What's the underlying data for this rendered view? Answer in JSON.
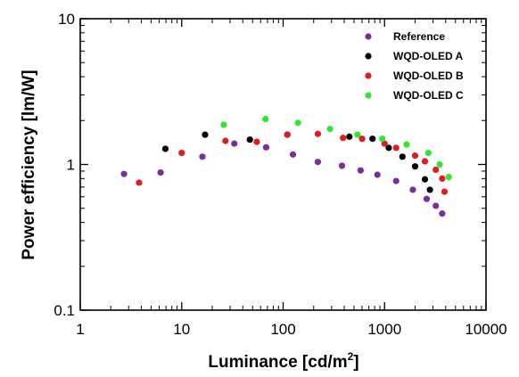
{
  "chart_data": {
    "type": "scatter",
    "title": "",
    "xlabel": "Luminance [cd/m",
    "xlabel_sup": "2",
    "xlabel_end": "]",
    "ylabel": "Power efficiency [lm/W]",
    "xscale": "log",
    "yscale": "log",
    "xlim": [
      1,
      10000
    ],
    "ylim": [
      0.1,
      10
    ],
    "x_ticks": [
      1,
      10,
      100,
      1000,
      10000
    ],
    "x_tick_labels": [
      "1",
      "10",
      "100",
      "1000",
      "10000"
    ],
    "y_ticks": [
      0.1,
      1,
      10
    ],
    "y_tick_labels": [
      "0.1",
      "1",
      "10"
    ],
    "grid": false,
    "legend_position": "top-right",
    "series": [
      {
        "name": "Reference",
        "color": "#7b2d9e",
        "points": [
          [
            2.7,
            0.86
          ],
          [
            6.2,
            0.88
          ],
          [
            16,
            1.13
          ],
          [
            33,
            1.39
          ],
          [
            68,
            1.31
          ],
          [
            125,
            1.17
          ],
          [
            220,
            1.04
          ],
          [
            380,
            0.98
          ],
          [
            580,
            0.91
          ],
          [
            850,
            0.85
          ],
          [
            1300,
            0.77
          ],
          [
            1900,
            0.67
          ],
          [
            2600,
            0.58
          ],
          [
            3200,
            0.52
          ],
          [
            3700,
            0.46
          ]
        ]
      },
      {
        "name": "WQD-OLED A",
        "color": "#000000",
        "points": [
          [
            6.9,
            1.28
          ],
          [
            17,
            1.6
          ],
          [
            47,
            1.48
          ],
          [
            110,
            1.6
          ],
          [
            450,
            1.55
          ],
          [
            760,
            1.5
          ],
          [
            1100,
            1.3
          ],
          [
            1500,
            1.13
          ],
          [
            2000,
            0.97
          ],
          [
            2500,
            0.79
          ],
          [
            2800,
            0.67
          ]
        ]
      },
      {
        "name": "WQD-OLED B",
        "color": "#e8191e",
        "points": [
          [
            3.8,
            0.75
          ],
          [
            10,
            1.2
          ],
          [
            27,
            1.45
          ],
          [
            55,
            1.43
          ],
          [
            110,
            1.6
          ],
          [
            220,
            1.62
          ],
          [
            390,
            1.52
          ],
          [
            600,
            1.5
          ],
          [
            1000,
            1.39
          ],
          [
            1300,
            1.3
          ],
          [
            2000,
            1.15
          ],
          [
            2500,
            1.05
          ],
          [
            3200,
            0.92
          ],
          [
            3700,
            0.8
          ],
          [
            3900,
            0.65
          ]
        ]
      },
      {
        "name": "WQD-OLED C",
        "color": "#2ee82e",
        "points": [
          [
            26,
            1.87
          ],
          [
            67,
            2.05
          ],
          [
            140,
            1.93
          ],
          [
            290,
            1.75
          ],
          [
            540,
            1.6
          ],
          [
            950,
            1.5
          ],
          [
            1650,
            1.37
          ],
          [
            2700,
            1.2
          ],
          [
            3500,
            1.0
          ],
          [
            4300,
            0.82
          ]
        ]
      }
    ]
  }
}
